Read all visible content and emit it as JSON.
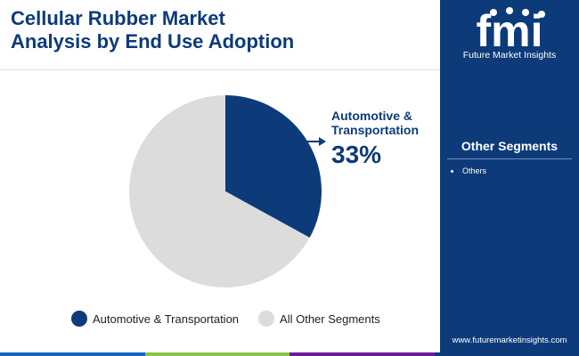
{
  "header": {
    "title_line1": "Cellular Rubber Market",
    "title_line2": "Analysis by End Use Adoption"
  },
  "brand": {
    "logo_text": "fmi",
    "name": "Future Market Insights",
    "url": "www.futuremarketinsights.com"
  },
  "sidebar": {
    "section_title": "Other Segments",
    "items": [
      "Others"
    ]
  },
  "colors": {
    "primary": "#0d3b7a",
    "other": "#dcdcdc",
    "bottom_bar": [
      "#1565c0",
      "#8bc34a",
      "#6a1b9a",
      "#0d3b7a"
    ]
  },
  "chart_data": {
    "type": "pie",
    "start_angle_deg": 0,
    "direction": "clockwise",
    "slices": [
      {
        "label": "Automotive & Transportation",
        "value": 33,
        "color": "#0d3b7a"
      },
      {
        "label": "All Other Segments",
        "value": 67,
        "color": "#dcdcdc"
      }
    ],
    "callout": {
      "label": "Automotive & Transportation",
      "value_text": "33%"
    },
    "legend": {
      "position": "bottom",
      "items": [
        {
          "label": "Automotive & Transportation",
          "color": "#0d3b7a"
        },
        {
          "label": "All Other Segments",
          "color": "#dcdcdc"
        }
      ]
    }
  }
}
